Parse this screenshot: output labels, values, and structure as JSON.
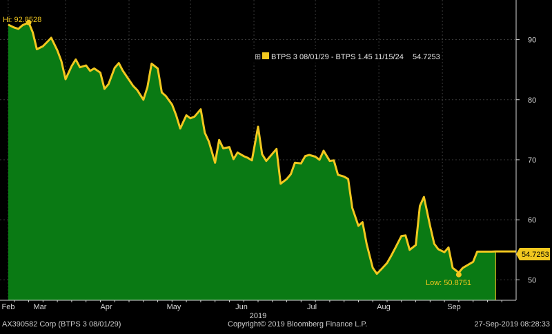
{
  "colors": {
    "background": "#000000",
    "area_fill": "#0a7a14",
    "line": "#f2c81f",
    "grid": "#3a3a3a",
    "axis_text": "#d6d6d6",
    "label_box": "#f2c81f",
    "legend_bg": "#000000"
  },
  "legend": {
    "expander": "⊞",
    "series_label": "BTPS 3 08/01/29 - BTPS 1.45 11/15/24",
    "last_value": "54.7253"
  },
  "annotations": {
    "high": "Hi: 92.8528",
    "low": "Low: 50.8751",
    "last_tag": "54.7253"
  },
  "footer": {
    "left": "AX390582 Corp (BTPS 3 08/01/29)",
    "center": "Copyright© 2019 Bloomberg Finance L.P.",
    "right": "27-Sep-2019 08:28:33"
  },
  "chart_data": {
    "type": "area",
    "title": "",
    "xlabel": "2019",
    "ylabel": "",
    "x_tick_labels": [
      "Feb",
      "Mar",
      "Apr",
      "May",
      "Jun",
      "Jul",
      "Aug",
      "Sep"
    ],
    "y_ticks": [
      50,
      60,
      70,
      80,
      90
    ],
    "ylim": [
      46.6,
      96.6
    ],
    "grid": true,
    "legend_position": "top-center",
    "y_axis_side": "right",
    "series": [
      {
        "name": "BTPS 3 08/01/29 - BTPS 1.45 11/15/24",
        "x": [
          "2019-02-01",
          "2019-02-04",
          "2019-02-06",
          "2019-02-08",
          "2019-02-11",
          "2019-02-13",
          "2019-02-15",
          "2019-02-18",
          "2019-02-20",
          "2019-02-22",
          "2019-02-25",
          "2019-02-27",
          "2019-03-01",
          "2019-03-04",
          "2019-03-06",
          "2019-03-08",
          "2019-03-11",
          "2019-03-13",
          "2019-03-15",
          "2019-03-18",
          "2019-03-20",
          "2019-03-22",
          "2019-03-25",
          "2019-03-27",
          "2019-03-29",
          "2019-04-01",
          "2019-04-03",
          "2019-04-05",
          "2019-04-08",
          "2019-04-10",
          "2019-04-12",
          "2019-04-15",
          "2019-04-17",
          "2019-04-19",
          "2019-04-22",
          "2019-04-24",
          "2019-04-26",
          "2019-04-29",
          "2019-05-01",
          "2019-05-03",
          "2019-05-06",
          "2019-05-08",
          "2019-05-10",
          "2019-05-13",
          "2019-05-15",
          "2019-05-17",
          "2019-05-20",
          "2019-05-22",
          "2019-05-24",
          "2019-05-27",
          "2019-05-29",
          "2019-05-31",
          "2019-06-03",
          "2019-06-05",
          "2019-06-07",
          "2019-06-10",
          "2019-06-12",
          "2019-06-14",
          "2019-06-17",
          "2019-06-19",
          "2019-06-21",
          "2019-06-24",
          "2019-06-26",
          "2019-06-28",
          "2019-07-01",
          "2019-07-03",
          "2019-07-05",
          "2019-07-08",
          "2019-07-10",
          "2019-07-12",
          "2019-07-15",
          "2019-07-17",
          "2019-07-19",
          "2019-07-22",
          "2019-07-24",
          "2019-07-26",
          "2019-07-29",
          "2019-07-31",
          "2019-08-02",
          "2019-08-05",
          "2019-08-07",
          "2019-08-09",
          "2019-08-12",
          "2019-08-14",
          "2019-08-16",
          "2019-08-19",
          "2019-08-21",
          "2019-08-23",
          "2019-08-26",
          "2019-08-28",
          "2019-08-30",
          "2019-09-02",
          "2019-09-04",
          "2019-09-06",
          "2019-09-09",
          "2019-09-11",
          "2019-09-13",
          "2019-09-16",
          "2019-09-18",
          "2019-09-20",
          "2019-09-23",
          "2019-09-25",
          "2019-09-27"
        ],
        "values": [
          92.5,
          92.0,
          91.8,
          92.4,
          92.85,
          91.2,
          88.4,
          88.9,
          89.6,
          90.3,
          88.2,
          86.4,
          83.4,
          85.6,
          86.7,
          85.4,
          85.7,
          84.8,
          85.2,
          84.5,
          81.8,
          82.6,
          85.3,
          86.1,
          84.8,
          83.3,
          82.3,
          81.6,
          80.0,
          82.1,
          86.0,
          85.2,
          81.2,
          80.6,
          79.2,
          77.4,
          75.2,
          77.4,
          76.9,
          77.2,
          78.4,
          74.5,
          73.0,
          69.5,
          73.3,
          71.9,
          72.1,
          70.1,
          71.2,
          70.6,
          70.3,
          69.9,
          75.5,
          70.9,
          69.8,
          71.0,
          71.8,
          66.0,
          66.8,
          67.6,
          69.5,
          69.4,
          70.6,
          70.8,
          70.5,
          70.0,
          71.5,
          69.8,
          69.9,
          67.5,
          67.2,
          66.8,
          62.0,
          59.0,
          59.6,
          56.0,
          52.0,
          51.0,
          51.7,
          52.8,
          54.0,
          55.3,
          57.3,
          57.4,
          55.0,
          55.8,
          62.3,
          63.8,
          59.0,
          56.0,
          55.1,
          54.6,
          55.4,
          52.0,
          51.2,
          52.0,
          52.4,
          53.0,
          54.7,
          54.7,
          54.7,
          54.7,
          54.7253
        ]
      }
    ],
    "high": {
      "x": "2019-02-11",
      "value": 92.8528
    },
    "low": {
      "x": "2019-09-09",
      "value": 50.8751
    },
    "last": 54.7253
  }
}
